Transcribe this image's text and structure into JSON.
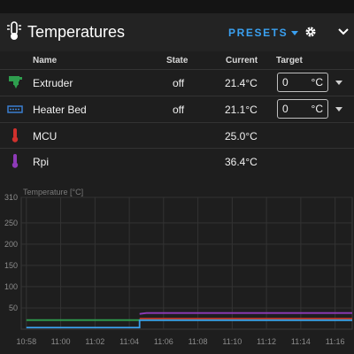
{
  "header": {
    "title": "Temperatures",
    "presets_label": "PRESETS",
    "icons": [
      "thermometer-lines-icon",
      "chevron-down-icon",
      "gear-icon",
      "collapse-chevron-icon"
    ]
  },
  "table": {
    "columns": {
      "name": "Name",
      "state": "State",
      "current": "Current",
      "target": "Target"
    },
    "rows": [
      {
        "name": "Extruder",
        "state": "off",
        "current": "21.4°C",
        "target": "0",
        "unit": "°C",
        "icon": "extruder-icon",
        "color": "#2e9e4e"
      },
      {
        "name": "Heater Bed",
        "state": "off",
        "current": "21.1°C",
        "target": "0",
        "unit": "°C",
        "icon": "heater-bed-icon",
        "color": "#3a7fd0"
      },
      {
        "name": "MCU",
        "current": "25.0°C",
        "icon": "thermometer-icon",
        "color": "#d0312d"
      },
      {
        "name": "Rpi",
        "current": "36.4°C",
        "icon": "thermometer-icon",
        "color": "#8e3ab8"
      }
    ]
  },
  "chart_data": {
    "type": "line",
    "title": "Temperature [°C]",
    "x": [
      "10:58",
      "11:00",
      "11:02",
      "11:04",
      "11:06",
      "11:08",
      "11:10",
      "11:12",
      "11:14",
      "11:16"
    ],
    "xlabel": "",
    "ylabel": "Temperature [°C]",
    "yticks": [
      50,
      100,
      150,
      200,
      250,
      310
    ],
    "ylim": [
      0,
      310
    ],
    "grid": true,
    "series": [
      {
        "color": "#8e3ab8",
        "points": [
          [
            "11:04.6",
            36
          ],
          [
            "11:05",
            38
          ],
          [
            "11:17",
            38
          ]
        ]
      },
      {
        "color": "#d0312d",
        "points": [
          [
            "11:04.6",
            25
          ],
          [
            "11:17",
            25
          ]
        ]
      },
      {
        "color": "#2e9e4e",
        "points": [
          [
            "10:58",
            21.4
          ],
          [
            "11:17",
            21.4
          ]
        ]
      },
      {
        "color": "#3a9ee8",
        "points": [
          [
            "10:58",
            4
          ],
          [
            "11:04.6",
            4
          ],
          [
            "11:04.6",
            21
          ],
          [
            "11:17",
            21
          ]
        ]
      }
    ]
  }
}
